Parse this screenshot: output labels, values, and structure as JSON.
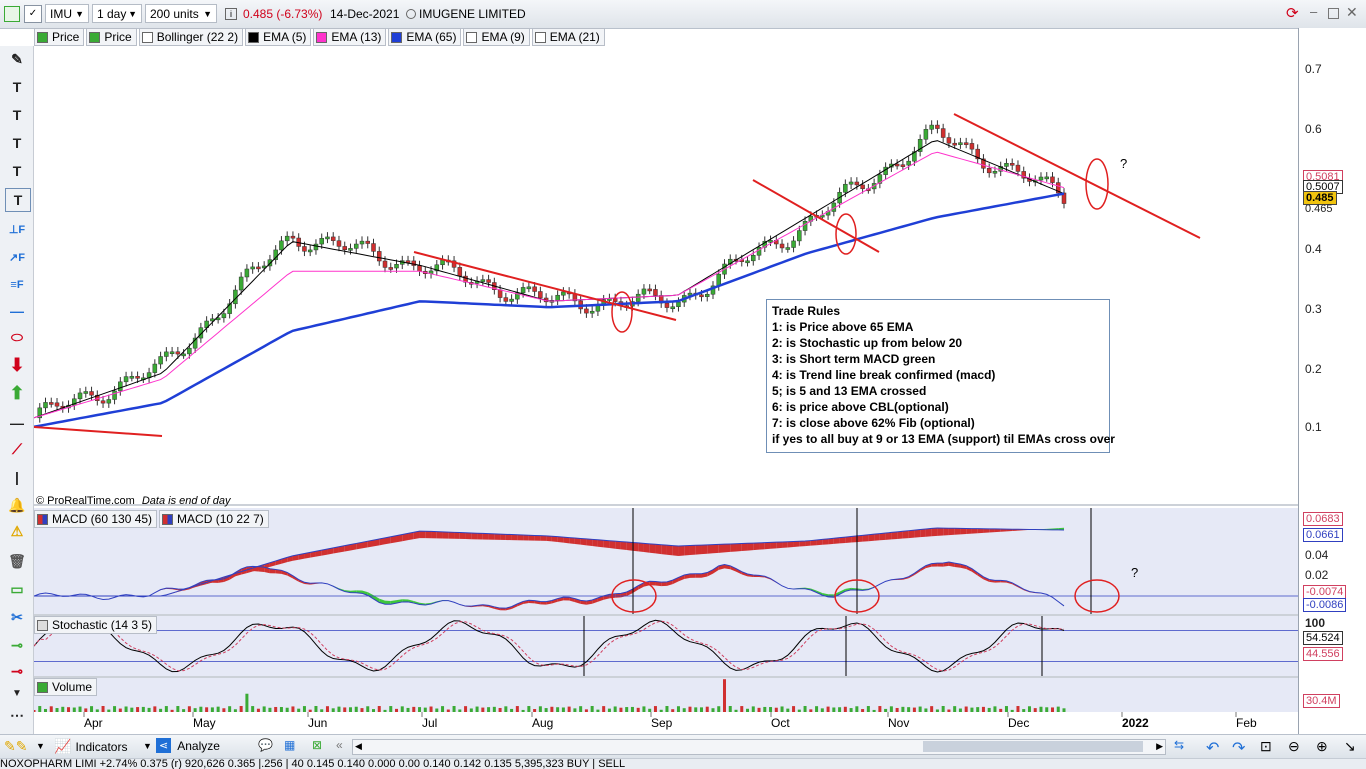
{
  "toolbar": {
    "symbol": "IMU",
    "period": "1 day",
    "units": "200 units",
    "quote": "0.485 (-6.73%)",
    "date": "14-Dec-2021",
    "name": "IMUGENE LIMITED"
  },
  "legend": [
    {
      "label": "Price",
      "color": "#3aaa35"
    },
    {
      "label": "Price",
      "color": "#3aaa35"
    },
    {
      "label": "Bollinger (22 2)",
      "color": "#ffffff"
    },
    {
      "label": "EMA (5)",
      "color": "#000000"
    },
    {
      "label": "EMA (13)",
      "color": "#ff33cc"
    },
    {
      "label": "EMA (65)",
      "color": "#1f3fd6"
    },
    {
      "label": "EMA (9)",
      "color": "#ffffff"
    },
    {
      "label": "EMA (21)",
      "color": "#ffffff"
    }
  ],
  "copyright": "© ProRealTime.com",
  "data_note": "Data is end of day",
  "price_axis": {
    "ticks": [
      "0.7",
      "0.6",
      "0.5",
      "0.4",
      "0.3",
      "0.2",
      "0.1"
    ],
    "tags": [
      "0.5081",
      "0.5007",
      "0.485",
      "0.465"
    ],
    "current": "0.485"
  },
  "trade_rules": {
    "title": "Trade Rules",
    "lines": [
      "1: is Price above 65 EMA",
      "2: is Stochastic up from below 20",
      "3: is Short term MACD green",
      "4: is Trend line break confirmed (macd)",
      "5; is 5 and 13 EMA crossed",
      "6: is price above CBL(optional)",
      "7: is close above 62% Fib (optional)",
      "if yes to all buy at 9 or 13 EMA (support) til EMAs cross over"
    ]
  },
  "question_mark": "?",
  "macd_pane": {
    "labels": [
      "MACD (60 130 45)",
      "MACD (10 22 7)"
    ],
    "ticks": [
      "0.04",
      "0.02"
    ],
    "tags": [
      "0.0683",
      "0.0661",
      "-0.0074",
      "-0.0086"
    ]
  },
  "stoch_pane": {
    "label": "Stochastic (14 3 5)",
    "ticks": [
      "100"
    ],
    "tags": [
      "54.524",
      "44.556"
    ]
  },
  "volume_pane": {
    "label": "Volume",
    "tag": "30.4M"
  },
  "months": [
    "Apr",
    "May",
    "Jun",
    "Jul",
    "Aug",
    "Sep",
    "Oct",
    "Nov",
    "Dec",
    "2022",
    "Feb"
  ],
  "bottom": {
    "indicators": "Indicators",
    "analyze": "Analyze"
  },
  "ticker_text": "NOXOPHARM LIMI     +2.74%     0.375 (r)     920,626     0.365   |.256 | 40     0.145     0.140     0.000     0.00     0.140     0.142     0.135     5,395,323          BUY | SELL",
  "chart_data": {
    "type": "line",
    "title": "IMU 1 day",
    "x": [
      "Apr",
      "May",
      "Jun",
      "Jul",
      "Aug",
      "Sep",
      "Oct",
      "Nov",
      "Dec"
    ],
    "ylim": [
      0.05,
      0.72
    ],
    "series": [
      {
        "name": "Price",
        "values": [
          0.115,
          0.2,
          0.42,
          0.37,
          0.31,
          0.31,
          0.44,
          0.59,
          0.485
        ]
      },
      {
        "name": "EMA (5)",
        "values": [
          0.115,
          0.19,
          0.41,
          0.37,
          0.31,
          0.32,
          0.45,
          0.58,
          0.49
        ]
      },
      {
        "name": "EMA (13)",
        "values": [
          0.115,
          0.18,
          0.36,
          0.36,
          0.31,
          0.32,
          0.44,
          0.56,
          0.5
        ]
      },
      {
        "name": "EMA (65)",
        "values": [
          0.1,
          0.14,
          0.26,
          0.31,
          0.3,
          0.31,
          0.39,
          0.45,
          0.49
        ]
      }
    ]
  }
}
